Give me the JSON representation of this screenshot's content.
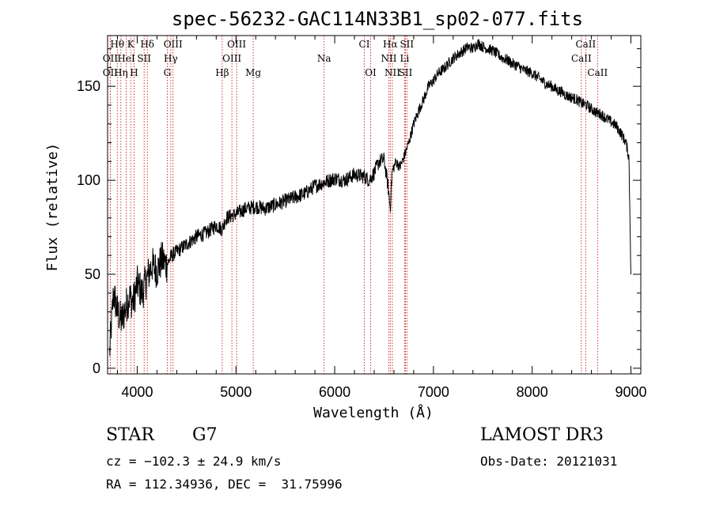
{
  "chart_data": {
    "type": "line",
    "title": "spec-56232-GAC114N33B1_sp02-077.fits",
    "xlabel": "Wavelength (Å)",
    "ylabel": "Flux (relative)",
    "xlim": [
      3700,
      9100
    ],
    "ylim": [
      -3,
      177
    ],
    "x_ticks": [
      4000,
      5000,
      6000,
      7000,
      8000,
      9000
    ],
    "x_tick_labels": [
      "4000",
      "5000",
      "6000",
      "7000",
      "8000",
      "9000"
    ],
    "y_ticks": [
      0,
      50,
      100,
      150
    ],
    "y_tick_labels": [
      "0",
      "50",
      "100",
      "150"
    ],
    "series": [
      {
        "name": "flux",
        "x": [
          3720,
          3760,
          3800,
          3840,
          3880,
          3920,
          3960,
          4000,
          4050,
          4100,
          4150,
          4200,
          4250,
          4300,
          4350,
          4400,
          4500,
          4600,
          4700,
          4800,
          4860,
          4900,
          5000,
          5100,
          5200,
          5300,
          5400,
          5500,
          5600,
          5700,
          5800,
          5900,
          6000,
          6100,
          6200,
          6300,
          6350,
          6400,
          6450,
          6500,
          6540,
          6563,
          6580,
          6620,
          6660,
          6700,
          6750,
          6800,
          6850,
          6900,
          6950,
          7000,
          7050,
          7100,
          7150,
          7200,
          7250,
          7300,
          7350,
          7400,
          7450,
          7500,
          7550,
          7600,
          7650,
          7700,
          7750,
          7800,
          7850,
          7900,
          7950,
          8000,
          8050,
          8100,
          8150,
          8200,
          8250,
          8300,
          8350,
          8400,
          8450,
          8500,
          8550,
          8600,
          8650,
          8700,
          8750,
          8800,
          8850,
          8900,
          8950,
          8980,
          9000
        ],
        "y": [
          8,
          40,
          30,
          25,
          32,
          38,
          35,
          45,
          40,
          48,
          55,
          52,
          58,
          55,
          60,
          62,
          66,
          70,
          72,
          76,
          74,
          80,
          82,
          85,
          86,
          85,
          87,
          89,
          91,
          93,
          97,
          99,
          101,
          100,
          103,
          102,
          100,
          104,
          110,
          111,
          97,
          85,
          104,
          110,
          107,
          112,
          120,
          130,
          137,
          143,
          150,
          153,
          157,
          159,
          162,
          165,
          167,
          169,
          171,
          170,
          173,
          171,
          170,
          169,
          167,
          165,
          164,
          162,
          161,
          159,
          158,
          157,
          155,
          153,
          151,
          150,
          148,
          147,
          145,
          144,
          143,
          141,
          140,
          138,
          136,
          135,
          133,
          131,
          129,
          125,
          120,
          112,
          50
        ]
      }
    ],
    "emission_lines": [
      {
        "name": "Hθ",
        "wave": 3798,
        "row": 0
      },
      {
        "name": "K",
        "wave": 3934,
        "row": 0
      },
      {
        "name": "Hδ",
        "wave": 4102,
        "row": 0
      },
      {
        "name": "OIII",
        "wave": 4363,
        "row": 0
      },
      {
        "name": "OIII",
        "wave": 5007,
        "row": 0
      },
      {
        "name": "CI",
        "wave": 6300,
        "row": 0
      },
      {
        "name": "Hα",
        "wave": 6563,
        "row": 0
      },
      {
        "name": "SII",
        "wave": 6731,
        "row": 0
      },
      {
        "name": "CaII",
        "wave": 8542,
        "row": 0
      },
      {
        "name": "OII",
        "wave": 3727,
        "row": 1
      },
      {
        "name": "HeI",
        "wave": 3889,
        "row": 1
      },
      {
        "name": "SII",
        "wave": 4070,
        "row": 1
      },
      {
        "name": "Hγ",
        "wave": 4340,
        "row": 1
      },
      {
        "name": "OIII",
        "wave": 4959,
        "row": 1
      },
      {
        "name": "Na",
        "wave": 5893,
        "row": 1
      },
      {
        "name": "NII",
        "wave": 6548,
        "row": 1
      },
      {
        "name": "Li",
        "wave": 6708,
        "row": 1
      },
      {
        "name": "CaII",
        "wave": 8498,
        "row": 1
      },
      {
        "name": "OII",
        "wave": 3727,
        "row": 2
      },
      {
        "name": "Hη",
        "wave": 3835,
        "row": 2
      },
      {
        "name": "H",
        "wave": 3968,
        "row": 2
      },
      {
        "name": "G",
        "wave": 4304,
        "row": 2
      },
      {
        "name": "Hβ",
        "wave": 4861,
        "row": 2
      },
      {
        "name": "Mg",
        "wave": 5175,
        "row": 2
      },
      {
        "name": "OI",
        "wave": 6364,
        "row": 2
      },
      {
        "name": "NII",
        "wave": 6584,
        "row": 2
      },
      {
        "name": "SII",
        "wave": 6717,
        "row": 2
      },
      {
        "name": "CaII",
        "wave": 8662,
        "row": 2
      }
    ]
  },
  "info": {
    "class": "STAR",
    "subclass": "G7",
    "survey": "LAMOST DR3",
    "cz": "cz = −102.3 ± 24.9 km/s",
    "obs_date": "Obs-Date: 20121031",
    "radec": "RA = 112.34936, DEC =  31.75996"
  },
  "colors": {
    "line_marker": "#cc0000",
    "spectrum": "#000000"
  }
}
